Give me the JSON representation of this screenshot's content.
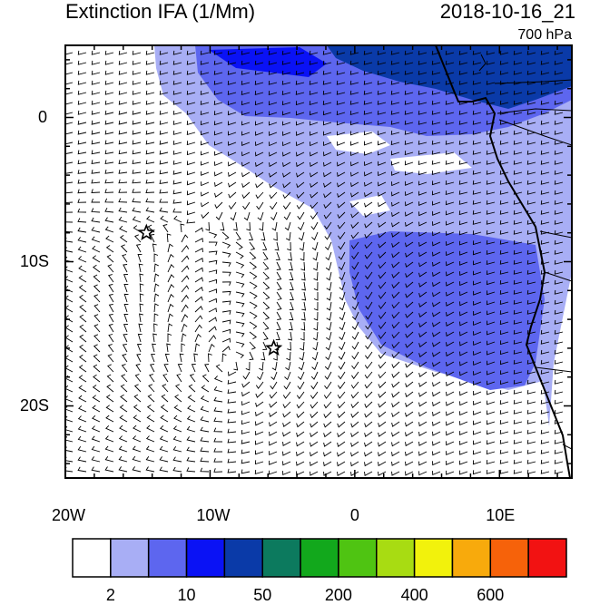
{
  "title": "Extinction IFA (1/Mm)",
  "datetime": "2018-10-16_21",
  "level": "700 hPa",
  "lon_ticks": [
    "20W",
    "10W",
    "0",
    "10E"
  ],
  "lat_ticks": [
    "0",
    "10S",
    "20S"
  ],
  "extent": {
    "lon": [
      -20,
      15
    ],
    "lat": [
      -25,
      5
    ]
  },
  "markers": [
    {
      "name": "star-marker-1",
      "lon": -14.4,
      "lat": -8.0
    },
    {
      "name": "star-marker-2",
      "lon": -5.6,
      "lat": -16.0
    }
  ],
  "colorbar": {
    "colors": [
      "#ffffff",
      "#a8aef5",
      "#5d66ef",
      "#0a12f5",
      "#0a3aa8",
      "#0c7a5e",
      "#12a81c",
      "#4fc412",
      "#a8dc12",
      "#f2f20c",
      "#f8aa0c",
      "#f6620a",
      "#f21212"
    ],
    "labels": [
      "2",
      "10",
      "50",
      "200",
      "400",
      "600"
    ]
  }
}
